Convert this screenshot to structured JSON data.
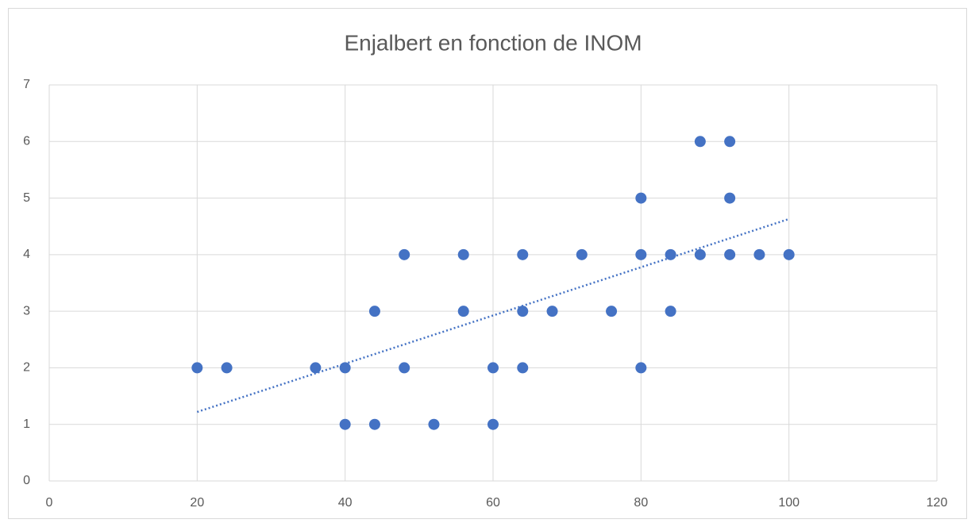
{
  "chart_data": {
    "type": "scatter",
    "title": "Enjalbert en fonction de INOM",
    "series": [
      {
        "color": "#4472c4",
        "x": [
          20,
          24,
          36,
          40,
          40,
          44,
          44,
          48,
          48,
          52,
          56,
          56,
          60,
          60,
          64,
          64,
          64,
          68,
          72,
          76,
          80,
          80,
          80,
          84,
          84,
          88,
          88,
          92,
          92,
          92,
          96,
          100
        ],
        "values": [
          2,
          2,
          2,
          2,
          1,
          1,
          3,
          4,
          2,
          1,
          4,
          3,
          2,
          1,
          4,
          3,
          2,
          3,
          4,
          3,
          5,
          4,
          2,
          4,
          3,
          6,
          4,
          6,
          5,
          4,
          4,
          4
        ]
      }
    ],
    "trendline": {
      "color": "#4472c4",
      "x": [
        20,
        100
      ],
      "values": [
        1.22,
        4.63
      ]
    },
    "xlim": [
      0,
      120
    ],
    "xticks": [
      0,
      20,
      40,
      60,
      80,
      100,
      120
    ],
    "ylim": [
      0,
      7
    ],
    "yticks": [
      0,
      1,
      2,
      3,
      4,
      5,
      6,
      7
    ],
    "grid": true
  }
}
